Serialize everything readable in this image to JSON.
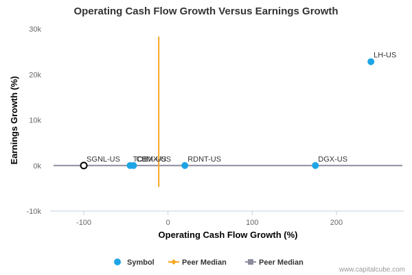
{
  "chart_data": {
    "type": "scatter",
    "title": "Operating Cash Flow Growth Versus Earnings Growth",
    "xlabel": "Operating Cash Flow Growth (%)",
    "ylabel": "Earnings Growth (%)",
    "xlim": [
      -140,
      280
    ],
    "ylim": [
      -10000,
      30000
    ],
    "x_ticks": [
      -100,
      0,
      100,
      200
    ],
    "y_ticks": [
      {
        "value": -10000,
        "label": "-10k"
      },
      {
        "value": 0,
        "label": "0k"
      },
      {
        "value": 10000,
        "label": "10k"
      },
      {
        "value": 20000,
        "label": "20k"
      },
      {
        "value": 30000,
        "label": "30k"
      }
    ],
    "points": [
      {
        "label": "LH-US",
        "x": 241,
        "y": 22800,
        "style": "filled"
      },
      {
        "label": "DGX-US",
        "x": 175,
        "y": 0,
        "style": "filled"
      },
      {
        "label": "RDNT-US",
        "x": 20,
        "y": 0,
        "style": "filled"
      },
      {
        "label": "TOBX-US",
        "x": -45,
        "y": 0,
        "style": "filled"
      },
      {
        "label": "CBMX-US",
        "x": -41,
        "y": 0,
        "style": "filled"
      },
      {
        "label": "SGNL-US",
        "x": -100,
        "y": 0,
        "style": "highlight"
      }
    ],
    "peer_median_x": -11,
    "peer_median_x_range": [
      -4700,
      28300
    ],
    "peer_median_y": 0,
    "legend": [
      {
        "label": "Symbol",
        "type": "dot"
      },
      {
        "label": "Peer Median",
        "type": "line-diamond"
      },
      {
        "label": "Peer Median",
        "type": "line-square"
      }
    ],
    "legend_position": "bottom",
    "grid": false,
    "colors": {
      "symbol": "#1ea5e6",
      "highlight_stroke": "#000000",
      "peer_median_x": "#f5a623",
      "peer_median_y": "#8c8c9e",
      "axis_line": "#c0d0e0"
    }
  },
  "credit": "www.capitalcube.com"
}
